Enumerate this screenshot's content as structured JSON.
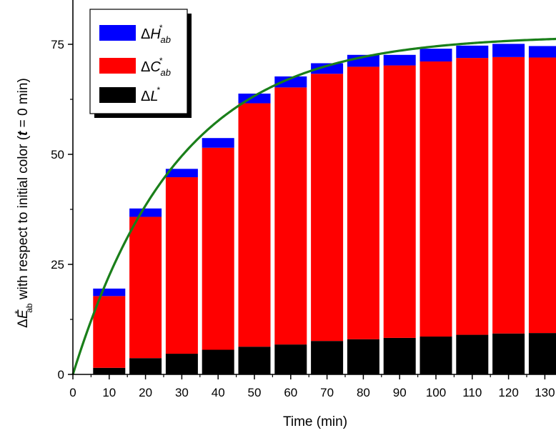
{
  "chart_data": {
    "type": "bar",
    "stacked": true,
    "title": "",
    "xlabel": "Time (min)",
    "ylabel": {
      "prefix": "Δ",
      "symbol": "E",
      "superscript": "*",
      "subscript": "ab",
      "text": " with respect to initial color (",
      "t_symbol": "t",
      "suffix": " = 0 min)"
    },
    "xlim": [
      0,
      135
    ],
    "ylim": [
      0,
      78
    ],
    "x_ticks": [
      0,
      10,
      20,
      30,
      40,
      50,
      60,
      70,
      80,
      90,
      100,
      110,
      120,
      130
    ],
    "y_ticks": [
      0,
      25,
      50,
      75
    ],
    "grid": false,
    "legend_position": "top-left",
    "x": [
      10,
      20,
      30,
      40,
      50,
      60,
      70,
      80,
      90,
      100,
      110,
      120,
      130
    ],
    "series": [
      {
        "key": "dL",
        "legend": {
          "prefix": "Δ",
          "symbol": "L",
          "superscript": "*",
          "subscript": ""
        },
        "color": "#000000",
        "values": [
          1.5,
          3.7,
          4.7,
          5.6,
          6.3,
          6.8,
          7.6,
          8.0,
          8.3,
          8.6,
          9.0,
          9.3,
          9.4
        ]
      },
      {
        "key": "dC",
        "legend": {
          "prefix": "Δ",
          "symbol": "C",
          "superscript": "*",
          "subscript": "ab"
        },
        "color": "#ff0000",
        "values": [
          16.3,
          32.1,
          40.1,
          45.9,
          55.3,
          58.4,
          60.7,
          61.9,
          61.9,
          62.5,
          62.9,
          62.8,
          62.6
        ]
      },
      {
        "key": "dH",
        "legend": {
          "prefix": "Δ",
          "symbol": "H",
          "superscript": "*",
          "subscript": "ab"
        },
        "color": "#0000ff",
        "values": [
          1.7,
          1.9,
          1.9,
          2.2,
          2.2,
          2.5,
          2.4,
          2.7,
          2.4,
          2.9,
          2.8,
          3.0,
          2.6
        ]
      }
    ],
    "fit_curve": {
      "color": "#1a7f1a",
      "amplitude": 77,
      "time_constant": 29
    }
  }
}
